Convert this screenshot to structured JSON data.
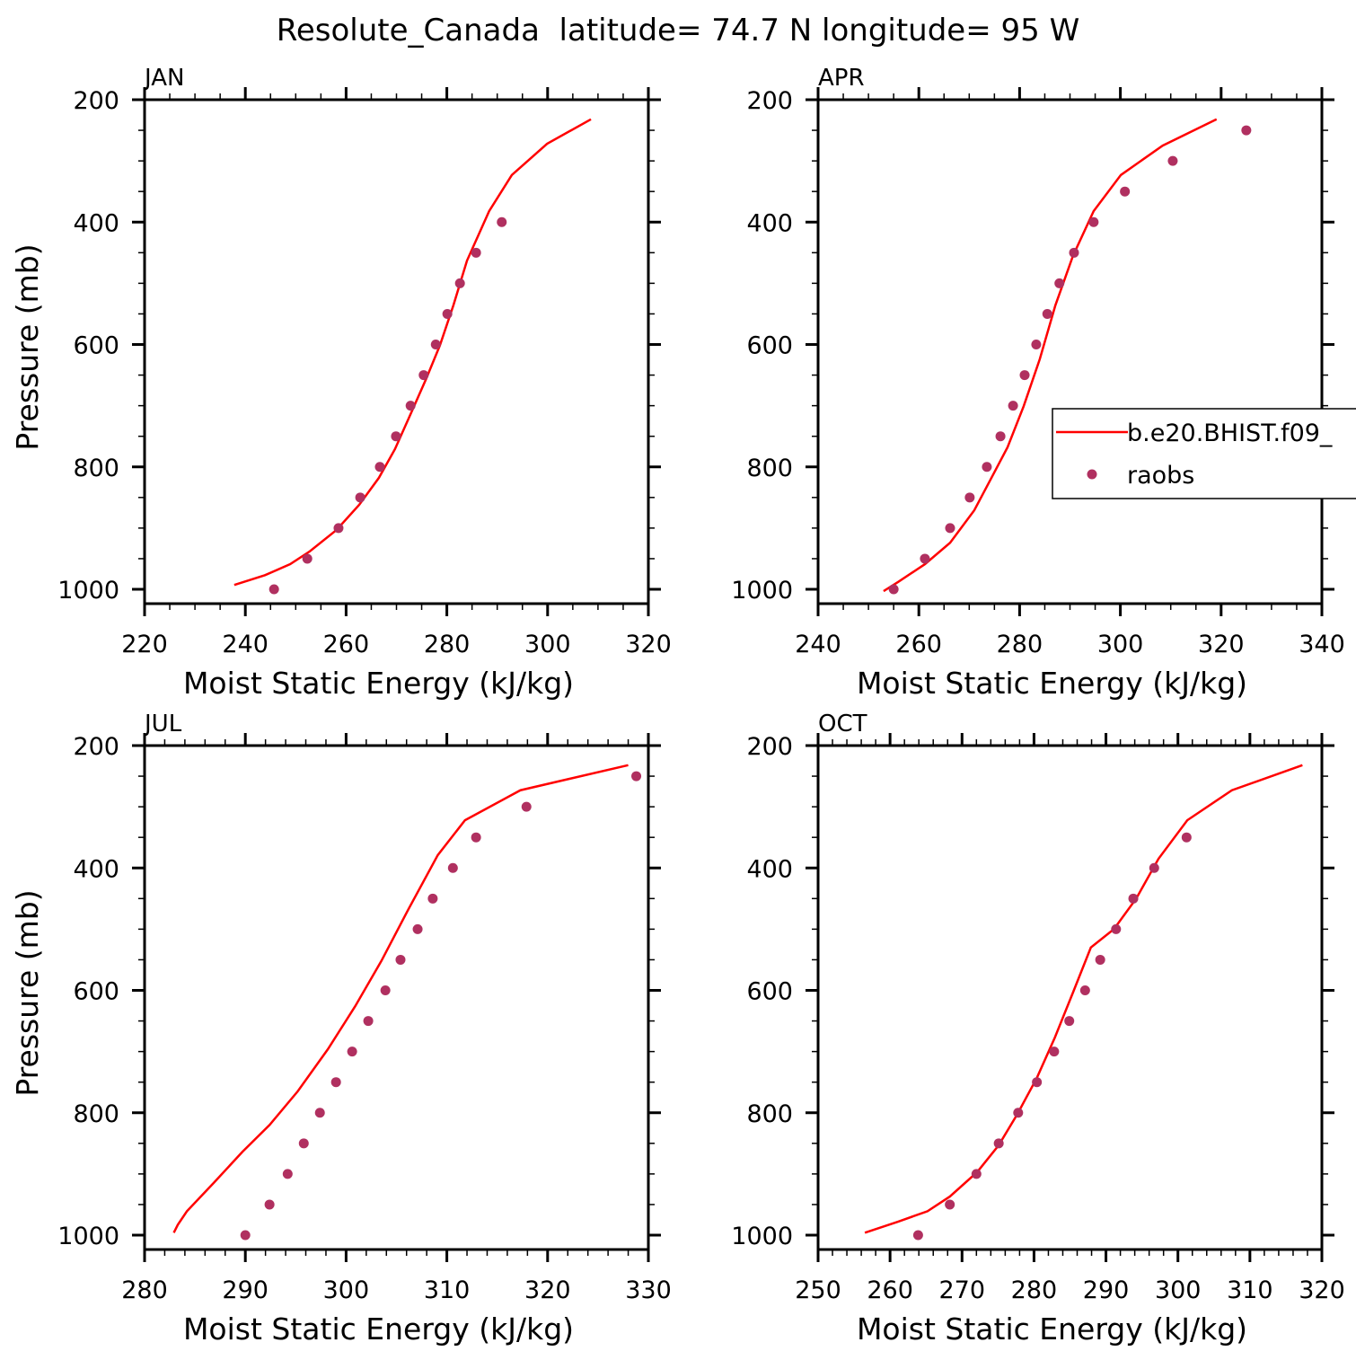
{
  "title": "Resolute_Canada  latitude= 74.7 N longitude= 95 W",
  "colors": {
    "model_line": "#ff0000",
    "raobs_marker": "#b03060",
    "axes": "#000000"
  },
  "legend": {
    "entries": [
      "b.e20.BHIST.f09_",
      "raobs"
    ],
    "placement": "overlapping right edge of APR panel"
  },
  "chart_data": [
    {
      "type": "line+scatter",
      "title": "JAN",
      "xlabel": "Moist Static Energy (kJ/kg)",
      "ylabel": "Pressure (mb)",
      "xlim": [
        220,
        320
      ],
      "ylim": [
        1025,
        200
      ],
      "y_inverted": true,
      "xticks": [
        "220",
        "240",
        "260",
        "280",
        "300",
        "320"
      ],
      "yticks": [
        "200",
        "400",
        "600",
        "800",
        "1000"
      ],
      "series": [
        {
          "name": "b.e20.BHIST.f09_",
          "kind": "line",
          "x": [
            237.8,
            243.9,
            248.9,
            252.8,
            258.1,
            262.6,
            266.5,
            269.7,
            272.9,
            275.9,
            278.6,
            281.3,
            284.0,
            288.4,
            292.9,
            299.9,
            308.6
          ],
          "y": [
            993,
            977,
            959,
            938,
            903,
            862,
            818,
            771,
            712,
            656,
            602,
            536,
            463,
            382,
            323,
            272,
            232
          ]
        },
        {
          "name": "raobs",
          "kind": "scatter",
          "x": [
            245.7,
            252.3,
            258.5,
            262.8,
            266.7,
            269.9,
            272.8,
            275.4,
            277.8,
            280.1,
            282.6,
            285.8,
            290.9
          ],
          "y": [
            1000,
            950,
            900,
            850,
            800,
            750,
            700,
            650,
            600,
            550,
            500,
            450,
            400
          ]
        }
      ]
    },
    {
      "type": "line+scatter",
      "title": "APR",
      "xlabel": "Moist Static Energy (kJ/kg)",
      "ylabel": "",
      "xlim": [
        240,
        340
      ],
      "ylim": [
        1025,
        200
      ],
      "y_inverted": true,
      "xticks": [
        "240",
        "260",
        "280",
        "300",
        "320",
        "340"
      ],
      "yticks": [
        "200",
        "400",
        "600",
        "800",
        "1000"
      ],
      "series": [
        {
          "name": "b.e20.BHIST.f09_",
          "kind": "line",
          "x": [
            253.0,
            255.9,
            261.2,
            266.2,
            271.0,
            274.6,
            277.6,
            280.8,
            284.0,
            287.1,
            290.6,
            294.7,
            300.1,
            308.4,
            319.1
          ],
          "y": [
            1003,
            988,
            959,
            924,
            871,
            815,
            768,
            701,
            624,
            536,
            455,
            382,
            323,
            275,
            232
          ]
        },
        {
          "name": "raobs",
          "kind": "scatter",
          "x": [
            255.0,
            261.2,
            266.2,
            270.1,
            273.5,
            276.2,
            278.7,
            281.0,
            283.3,
            285.5,
            287.9,
            290.8,
            294.7,
            300.9,
            310.4,
            325.0
          ],
          "y": [
            1000,
            950,
            900,
            850,
            800,
            750,
            700,
            650,
            600,
            550,
            500,
            450,
            400,
            350,
            300,
            250
          ]
        }
      ]
    },
    {
      "type": "line+scatter",
      "title": "JUL",
      "xlabel": "Moist Static Energy (kJ/kg)",
      "ylabel": "Pressure (mb)",
      "xlim": [
        280,
        330
      ],
      "ylim": [
        1025,
        200
      ],
      "y_inverted": true,
      "xticks": [
        "280",
        "290",
        "300",
        "310",
        "320",
        "330"
      ],
      "yticks": [
        "200",
        "400",
        "600",
        "800",
        "1000"
      ],
      "series": [
        {
          "name": "b.e20.BHIST.f09_",
          "kind": "line",
          "x": [
            282.9,
            283.3,
            284.2,
            286.9,
            289.7,
            292.4,
            295.2,
            298.2,
            300.9,
            303.5,
            306.2,
            309.1,
            311.8,
            317.3,
            328.0
          ],
          "y": [
            996,
            983,
            961,
            914,
            864,
            820,
            765,
            696,
            626,
            552,
            467,
            379,
            322,
            273,
            232
          ]
        },
        {
          "name": "raobs",
          "kind": "scatter",
          "x": [
            290.0,
            292.4,
            294.2,
            295.8,
            297.4,
            299.0,
            300.6,
            302.2,
            303.9,
            305.4,
            307.1,
            308.6,
            310.6,
            312.9,
            317.9,
            328.8
          ],
          "y": [
            1000,
            950,
            900,
            850,
            800,
            750,
            700,
            650,
            600,
            550,
            500,
            450,
            400,
            350,
            300,
            250
          ]
        }
      ]
    },
    {
      "type": "line+scatter",
      "title": "OCT",
      "xlabel": "Moist Static Energy (kJ/kg)",
      "ylabel": "",
      "xlim": [
        250,
        320
      ],
      "ylim": [
        1025,
        200
      ],
      "y_inverted": true,
      "xticks": [
        "250",
        "260",
        "270",
        "280",
        "290",
        "300",
        "310",
        "320"
      ],
      "yticks": [
        "200",
        "400",
        "600",
        "800",
        "1000"
      ],
      "series": [
        {
          "name": "b.e20.BHIST.f09_",
          "kind": "line",
          "x": [
            256.5,
            261.1,
            265.2,
            268.3,
            272.1,
            275.1,
            277.7,
            280.4,
            282.9,
            285.4,
            287.9,
            291.1,
            294.2,
            297.3,
            301.3,
            307.5,
            317.3
          ],
          "y": [
            996,
            978,
            961,
            937,
            897,
            853,
            802,
            743,
            677,
            604,
            530,
            500,
            450,
            385,
            322,
            273,
            232
          ]
        },
        {
          "name": "raobs",
          "kind": "scatter",
          "x": [
            263.9,
            268.3,
            272.0,
            275.1,
            277.8,
            280.4,
            282.8,
            284.9,
            287.1,
            289.2,
            291.4,
            293.8,
            296.7,
            301.2
          ],
          "y": [
            1000,
            950,
            900,
            850,
            800,
            750,
            700,
            650,
            600,
            550,
            500,
            450,
            400,
            350
          ]
        }
      ]
    }
  ]
}
